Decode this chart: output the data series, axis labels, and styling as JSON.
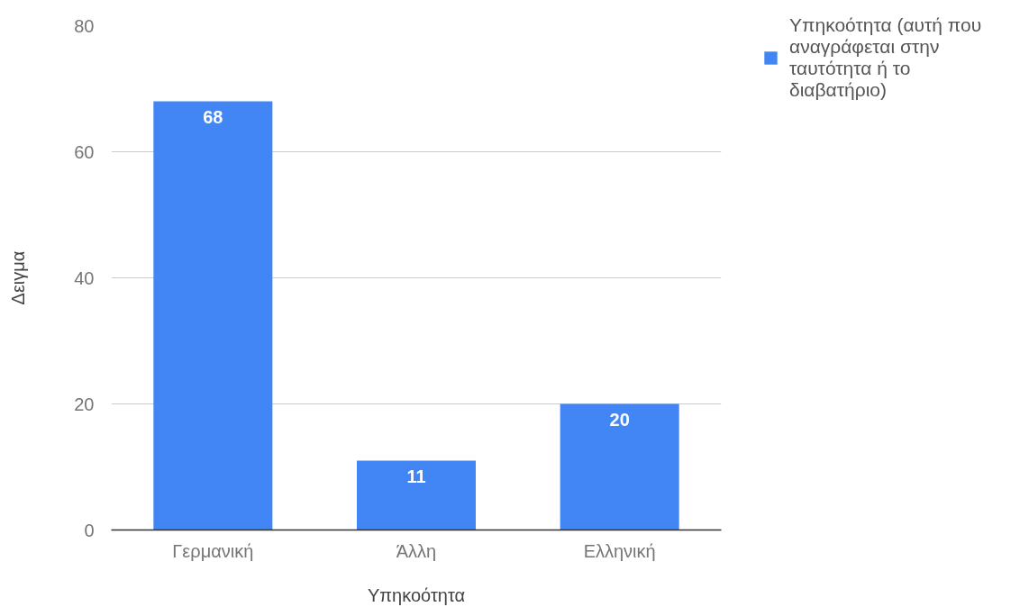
{
  "chart_data": {
    "type": "bar",
    "xlabel": "Υπηκοότητα",
    "ylabel": "Δειγμα",
    "categories": [
      "Γερμανική",
      "Άλλη",
      "Ελληνική"
    ],
    "series": [
      {
        "name": "Υπηκοότητα (αυτή που αναγράφεται στην ταυτότητα ή το διαβατήριο)",
        "color": "#4285f4",
        "values": [
          68,
          11,
          20
        ]
      }
    ],
    "ylim": [
      0,
      80
    ],
    "yticks": [
      0,
      20,
      40,
      60,
      80
    ],
    "grid": "y",
    "legend": "top right",
    "data_labels": true
  }
}
